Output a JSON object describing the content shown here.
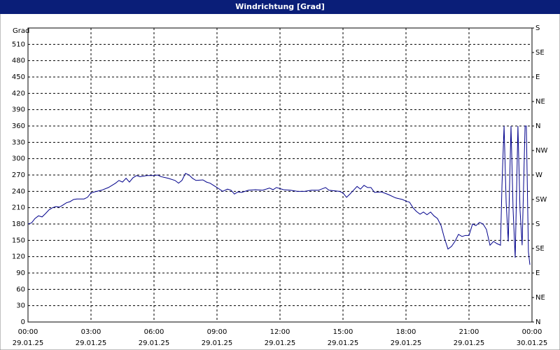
{
  "chart_data": {
    "type": "line",
    "title": "Windrichtung [Grad]",
    "y_label": "Grad",
    "xlim": [
      0,
      24
    ],
    "ylim": [
      0,
      540
    ],
    "y2lim": [
      0,
      540
    ],
    "grid": true,
    "xticks": [
      {
        "value": 0,
        "label": [
          "00:00",
          "29.01.25"
        ]
      },
      {
        "value": 3,
        "label": [
          "03:00",
          "29.01.25"
        ]
      },
      {
        "value": 6,
        "label": [
          "06:00",
          "29.01.25"
        ]
      },
      {
        "value": 9,
        "label": [
          "09:00",
          "29.01.25"
        ]
      },
      {
        "value": 12,
        "label": [
          "12:00",
          "29.01.25"
        ]
      },
      {
        "value": 15,
        "label": [
          "15:00",
          "29.01.25"
        ]
      },
      {
        "value": 18,
        "label": [
          "18:00",
          "29.01.25"
        ]
      },
      {
        "value": 21,
        "label": [
          "21:00",
          "29.01.25"
        ]
      },
      {
        "value": 24,
        "label": [
          "00:00",
          "30.01.25"
        ]
      }
    ],
    "yticks": [
      0,
      30,
      60,
      90,
      120,
      150,
      180,
      210,
      240,
      270,
      300,
      330,
      360,
      390,
      420,
      450,
      480,
      510
    ],
    "y2ticks": [
      {
        "value": 0,
        "label": "N"
      },
      {
        "value": 45,
        "label": "NE"
      },
      {
        "value": 90,
        "label": "E"
      },
      {
        "value": 135,
        "label": "SE"
      },
      {
        "value": 180,
        "label": "S"
      },
      {
        "value": 225,
        "label": "SW"
      },
      {
        "value": 270,
        "label": "W"
      },
      {
        "value": 315,
        "label": "NW"
      },
      {
        "value": 360,
        "label": "N"
      },
      {
        "value": 405,
        "label": "NE"
      },
      {
        "value": 450,
        "label": "E"
      },
      {
        "value": 495,
        "label": "SE"
      },
      {
        "value": 540,
        "label": "S"
      }
    ],
    "series": [
      {
        "color": "#00008b",
        "x": [
          0,
          0.17,
          0.33,
          0.5,
          0.67,
          0.83,
          1,
          1.17,
          1.33,
          1.5,
          1.67,
          1.83,
          2,
          2.17,
          2.33,
          2.67,
          2.83,
          3,
          3.17,
          3.5,
          3.83,
          4.17,
          4.33,
          4.5,
          4.67,
          4.83,
          5,
          5.17,
          5.33,
          5.67,
          6,
          6.17,
          6.33,
          6.67,
          7,
          7.17,
          7.33,
          7.5,
          7.67,
          7.83,
          8,
          8.33,
          8.5,
          8.67,
          9,
          9.27,
          9.5,
          9.67,
          9.83,
          10,
          10.17,
          10.5,
          10.83,
          11.17,
          11.5,
          11.67,
          11.83,
          12.17,
          12.5,
          12.83,
          13.17,
          13.5,
          13.83,
          14.17,
          14.33,
          14.83,
          15,
          15.17,
          15.33,
          15.5,
          15.67,
          15.83,
          16,
          16.17,
          16.33,
          16.5,
          16.83,
          17.17,
          17.5,
          17.83,
          18,
          18.17,
          18.33,
          18.5,
          18.67,
          18.83,
          19,
          19.17,
          19.33,
          19.5,
          19.67,
          19.83,
          20,
          20.17,
          20.33,
          20.5,
          20.67,
          20.83,
          21,
          21.17,
          21.33,
          21.5,
          21.67,
          21.83,
          22,
          22.17,
          22.33,
          22.5,
          22.57,
          22.67,
          22.77,
          22.87,
          23,
          23.1,
          23.2,
          23.33,
          23.43,
          23.53,
          23.67,
          23.73,
          23.83,
          23.9
        ],
        "values": [
          180,
          182,
          190,
          195,
          193,
          199,
          206,
          210,
          212,
          211,
          215,
          219,
          221,
          225,
          226,
          226,
          229,
          237,
          239,
          242,
          247,
          255,
          260,
          257,
          264,
          257,
          265,
          269,
          267,
          269,
          269,
          270,
          267,
          264,
          260,
          255,
          260,
          273,
          270,
          264,
          260,
          261,
          257,
          255,
          247,
          240,
          244,
          242,
          235,
          239,
          238,
          242,
          243,
          242,
          246,
          243,
          247,
          243,
          242,
          240,
          240,
          242,
          242,
          247,
          242,
          240,
          237,
          229,
          235,
          242,
          249,
          244,
          251,
          247,
          247,
          238,
          239,
          234,
          228,
          225,
          222,
          220,
          210,
          203,
          198,
          202,
          197,
          202,
          195,
          190,
          177,
          154,
          134,
          139,
          148,
          161,
          157,
          159,
          159,
          180,
          177,
          183,
          180,
          170,
          141,
          148,
          144,
          141,
          251,
          360,
          219,
          148,
          360,
          206,
          118,
          360,
          206,
          141,
          360,
          360,
          129,
          105
        ]
      }
    ]
  }
}
